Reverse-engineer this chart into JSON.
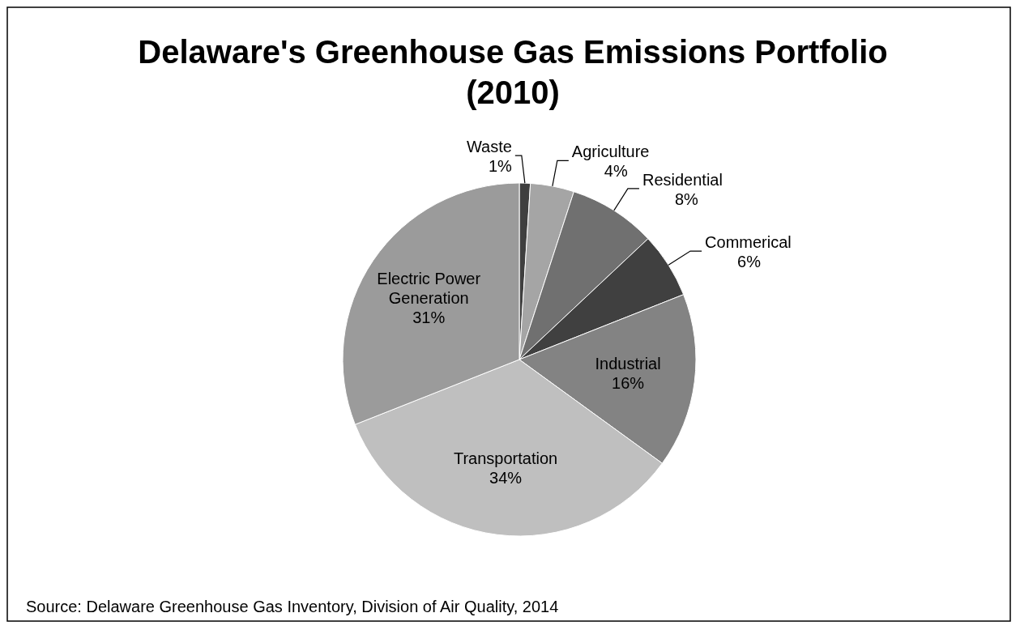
{
  "chart_data": {
    "type": "pie",
    "title": "Delaware's Greenhouse Gas Emissions Portfolio (2010)",
    "categories": [
      "Waste",
      "Agriculture",
      "Residential",
      "Commerical",
      "Industrial",
      "Transportation",
      "Electric Power Generation"
    ],
    "values": [
      1,
      4,
      8,
      6,
      16,
      34,
      31
    ],
    "colors": [
      "#3f3f3f",
      "#a5a5a5",
      "#707070",
      "#404040",
      "#838383",
      "#bfbfbf",
      "#9b9b9b"
    ],
    "value_labels": [
      "1%",
      "4%",
      "8%",
      "6%",
      "16%",
      "34%",
      "31%"
    ],
    "annotations": [
      "Source: Delaware Greenhouse Gas Inventory, Division of Air Quality, 2014"
    ]
  }
}
